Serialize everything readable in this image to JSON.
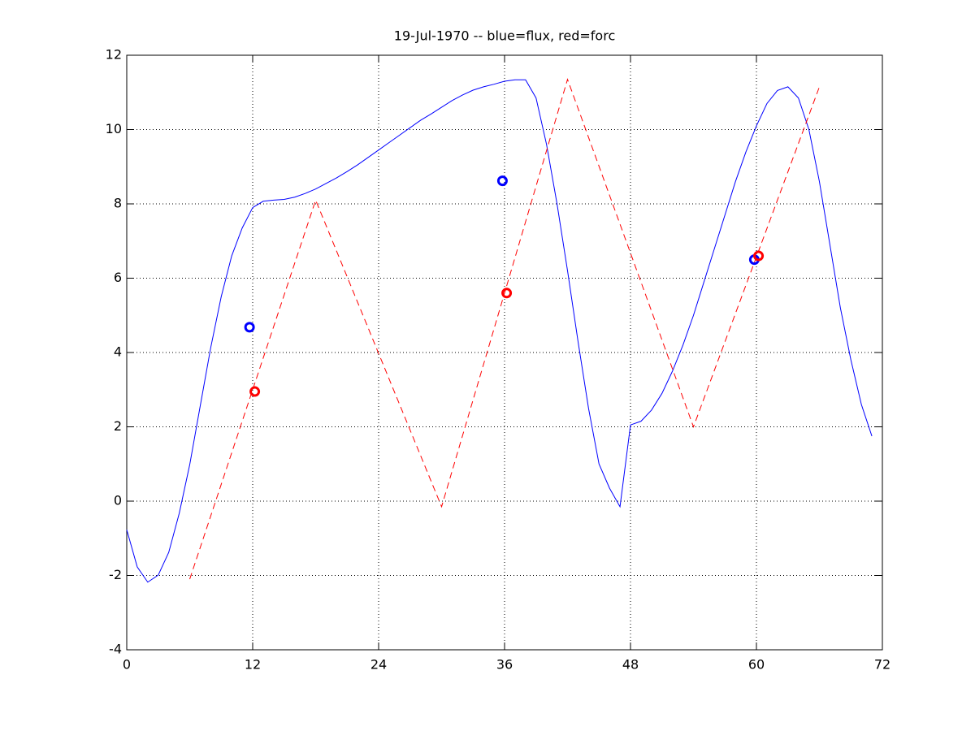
{
  "chart_data": {
    "type": "line",
    "title": "19-Jul-1970 -- blue=flux, red=forc",
    "xlim": [
      0,
      72
    ],
    "xticks": [
      0,
      12,
      24,
      36,
      48,
      60,
      72
    ],
    "ylim": [
      -4,
      12
    ],
    "yticks": [
      -4,
      -2,
      0,
      2,
      4,
      6,
      8,
      10,
      12
    ],
    "grid": true,
    "series": [
      {
        "color": "#0000ff",
        "style": "solid",
        "x": [
          0,
          1,
          2,
          3,
          4,
          5,
          6,
          7,
          8,
          9,
          10,
          11,
          12,
          13,
          14,
          15,
          16,
          17,
          18,
          19,
          20,
          21,
          22,
          23,
          24,
          25,
          26,
          27,
          28,
          29,
          30,
          31,
          32,
          33,
          34,
          35,
          36,
          37,
          38,
          39,
          40,
          41,
          42,
          43,
          44,
          45,
          46,
          47,
          48,
          49,
          50,
          51,
          52,
          53,
          54,
          55,
          56,
          57,
          58,
          59,
          60,
          61,
          62,
          63,
          64,
          65,
          66,
          67,
          68,
          69,
          70,
          71
        ],
        "values": [
          -0.77,
          -1.77,
          -2.18,
          -1.99,
          -1.38,
          -0.33,
          0.98,
          2.56,
          4.13,
          5.5,
          6.6,
          7.35,
          7.9,
          8.07,
          8.1,
          8.12,
          8.18,
          8.28,
          8.4,
          8.55,
          8.7,
          8.87,
          9.05,
          9.25,
          9.45,
          9.65,
          9.85,
          10.05,
          10.25,
          10.42,
          10.6,
          10.78,
          10.93,
          11.06,
          11.15,
          11.22,
          11.3,
          11.34,
          11.34,
          10.85,
          9.6,
          8.0,
          6.2,
          4.3,
          2.5,
          1.0,
          0.35,
          -0.15,
          2.05,
          2.15,
          2.45,
          2.9,
          3.5,
          4.2,
          5.0,
          5.9,
          6.8,
          7.7,
          8.6,
          9.4,
          10.1,
          10.7,
          11.05,
          11.15,
          10.85,
          10.0,
          8.6,
          6.9,
          5.2,
          3.8,
          2.6,
          1.75
        ]
      },
      {
        "color": "#ff0000",
        "style": "dashed",
        "x": [
          6,
          18,
          30,
          42,
          54,
          66
        ],
        "values": [
          -2.1,
          8.1,
          -0.15,
          11.35,
          2.0,
          11.15
        ]
      },
      {
        "color": "#0000ff",
        "style": "none",
        "marker": "circle",
        "x": [
          11.7,
          35.8,
          59.8
        ],
        "values": [
          4.68,
          8.62,
          6.5
        ]
      },
      {
        "color": "#ff0000",
        "style": "none",
        "marker": "circle",
        "x": [
          12.2,
          36.2,
          60.2
        ],
        "values": [
          2.95,
          5.6,
          6.6
        ]
      }
    ]
  }
}
